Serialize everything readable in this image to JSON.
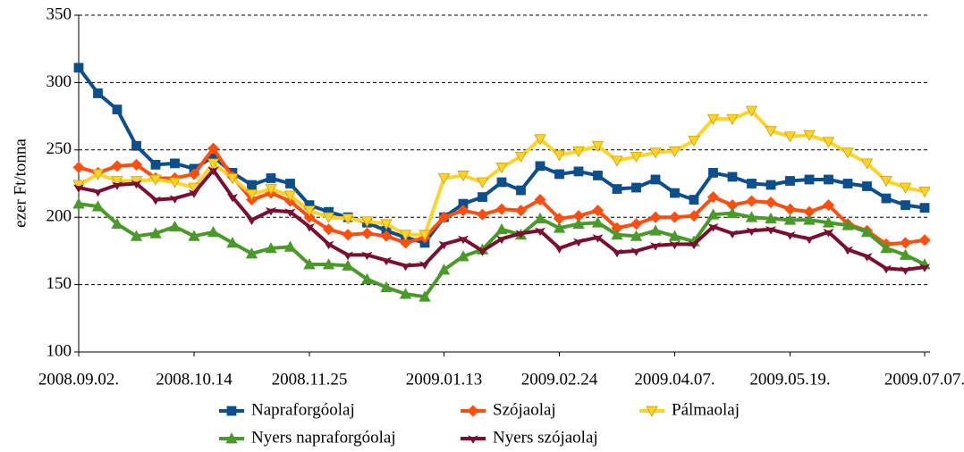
{
  "chart_data": {
    "type": "line",
    "y_label": "ezer Ft/tonna",
    "categories": [
      "2008.09.02.",
      null,
      null,
      null,
      null,
      null,
      "2008.10.14",
      null,
      null,
      null,
      null,
      null,
      "2008.11.25",
      null,
      null,
      null,
      null,
      null,
      null,
      "2009.01.13",
      null,
      null,
      null,
      null,
      null,
      "2009.02.24",
      null,
      null,
      null,
      null,
      null,
      "2009.04.07.",
      null,
      null,
      null,
      null,
      null,
      "2009.05.19.",
      null,
      null,
      null,
      null,
      null,
      null,
      "2009.07.07."
    ],
    "ylim": [
      100,
      350
    ],
    "yticks": [
      100,
      150,
      200,
      250,
      300,
      350
    ],
    "grid": true,
    "series": [
      {
        "name": "Napraforgóolaj",
        "color": "#0d4e8c",
        "marker": "square",
        "values": [
          311,
          292,
          280,
          253,
          239,
          240,
          236,
          245,
          233,
          224,
          229,
          225,
          209,
          204,
          200,
          196,
          190,
          185,
          181,
          200,
          210,
          215,
          226,
          220,
          238,
          232,
          234,
          231,
          221,
          222,
          228,
          218,
          213,
          233,
          230,
          225,
          224,
          227,
          228,
          228,
          225,
          223,
          214,
          209,
          207
        ]
      },
      {
        "name": "Szójaolaj",
        "color": "#ff4f10",
        "marker": "diamond",
        "values": [
          237,
          233,
          238,
          239,
          229,
          229,
          232,
          251,
          230,
          213,
          218,
          212,
          200,
          191,
          187,
          188,
          186,
          181,
          185,
          200,
          205,
          202,
          206,
          205,
          213,
          199,
          201,
          205,
          192,
          195,
          200,
          200,
          201,
          215,
          209,
          212,
          211,
          206,
          204,
          209,
          195,
          190,
          180,
          181,
          183
        ]
      },
      {
        "name": "Pálmaolaj",
        "color": "#ffd32a",
        "marker": "triangle-down",
        "values": [
          224,
          232,
          227,
          227,
          228,
          226,
          222,
          240,
          229,
          217,
          221,
          216,
          205,
          200,
          199,
          197,
          195,
          187,
          187,
          229,
          231,
          226,
          237,
          245,
          258,
          246,
          249,
          253,
          242,
          245,
          248,
          249,
          257,
          273,
          273,
          279,
          264,
          260,
          261,
          256,
          248,
          240,
          227,
          222,
          219
        ]
      },
      {
        "name": "Nyers napraforgóolaj",
        "color": "#4a9a2a",
        "marker": "triangle-up",
        "values": [
          210,
          208,
          195,
          186,
          188,
          193,
          186,
          189,
          181,
          173,
          177,
          178,
          165,
          165,
          164,
          154,
          148,
          143,
          141,
          161,
          171,
          176,
          191,
          187,
          199,
          192,
          195,
          196,
          187,
          186,
          190,
          186,
          182,
          202,
          203,
          200,
          199,
          198,
          198,
          196,
          194,
          189,
          177,
          172,
          165
        ]
      },
      {
        "name": "Nyers szójaolaj",
        "color": "#7a0f2f",
        "marker": "arrow",
        "values": [
          222,
          219,
          224,
          225,
          213,
          214,
          218,
          235,
          215,
          198,
          205,
          204,
          193,
          180,
          172,
          172,
          168,
          164,
          165,
          180,
          184,
          175,
          184,
          188,
          190,
          177,
          182,
          185,
          174,
          175,
          179,
          180,
          180,
          193,
          188,
          190,
          191,
          187,
          184,
          189,
          176,
          171,
          162,
          161,
          163
        ]
      }
    ]
  }
}
